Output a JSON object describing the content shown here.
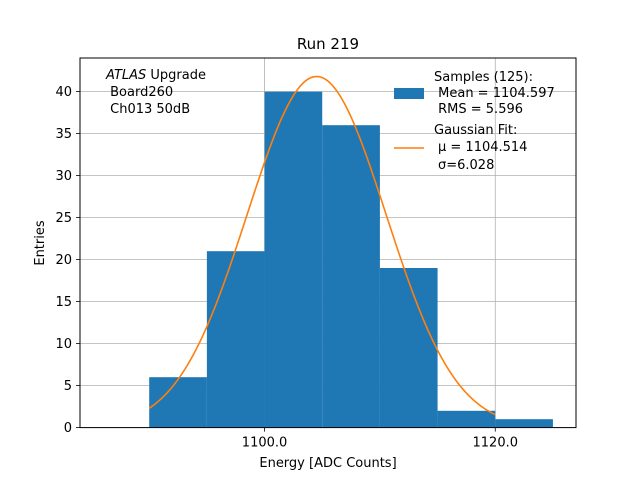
{
  "chart_data": {
    "type": "bar",
    "title": "Run 219",
    "xlabel": "Energy [ADC Counts]",
    "ylabel": "Entries",
    "xlim": [
      1084.0,
      1127.0
    ],
    "ylim": [
      0,
      44
    ],
    "grid": true,
    "xticks": [
      1100.0,
      1120.0
    ],
    "xtick_labels": [
      "1100.0",
      "1120.0"
    ],
    "yticks": [
      0,
      5,
      10,
      15,
      20,
      25,
      30,
      35,
      40
    ],
    "ytick_labels": [
      "0",
      "5",
      "10",
      "15",
      "20",
      "25",
      "30",
      "35",
      "40"
    ],
    "bin_edges": [
      1090,
      1095,
      1100,
      1105,
      1110,
      1115,
      1120,
      1125
    ],
    "values": [
      6,
      21,
      40,
      36,
      19,
      2,
      1
    ],
    "bar_color": "#1f77b4",
    "fit": {
      "mu": 1104.514,
      "sigma": 6.028,
      "amplitude": 41.8,
      "x_range": [
        1090,
        1120
      ],
      "color": "#ff7f0e"
    },
    "annotation": {
      "line1_italic": "ATLAS",
      "line1_rest": " Upgrade",
      "line2": " Board260",
      "line3": " Ch013 50dB"
    },
    "legend": {
      "placement": "top-right",
      "samples_lines": [
        "Samples (125):",
        " Mean = 1104.597",
        " RMS = 5.596"
      ],
      "fit_lines": [
        "Gaussian Fit:"
      ],
      "fit_mu_label": "μ = 1104.514",
      "fit_sigma_label": "σ=6.028"
    }
  }
}
